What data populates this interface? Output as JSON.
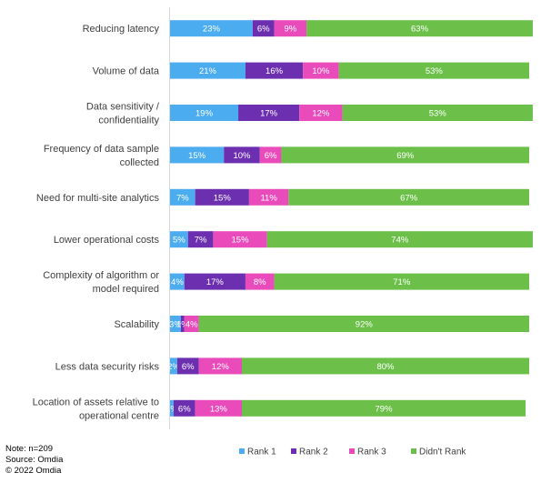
{
  "chart_data": {
    "type": "bar",
    "orientation": "horizontal",
    "stacked": true,
    "categories": [
      "Reducing latency",
      "Volume of data",
      "Data sensitivity / confidentiality",
      "Frequency of data sample collected",
      "Need for multi-site analytics",
      "Lower operational costs",
      "Complexity of algorithm or model required",
      "Scalability",
      "Less data security risks",
      "Location of assets relative to operational centre"
    ],
    "category_lines": [
      [
        "Reducing latency"
      ],
      [
        "Volume of data"
      ],
      [
        "Data sensitivity /",
        "confidentiality"
      ],
      [
        "Frequency of data sample",
        "collected"
      ],
      [
        "Need for multi-site analytics"
      ],
      [
        "Lower operational costs"
      ],
      [
        "Complexity of algorithm or",
        "model required"
      ],
      [
        "Scalability"
      ],
      [
        "Less data security risks"
      ],
      [
        "Location of assets relative to",
        "operational centre"
      ]
    ],
    "series": [
      {
        "name": "Rank 1",
        "color": "#4BACF0",
        "values": [
          23,
          21,
          19,
          15,
          7,
          5,
          4,
          3,
          2,
          1
        ]
      },
      {
        "name": "Rank 2",
        "color": "#6B2FAF",
        "values": [
          6,
          16,
          17,
          10,
          15,
          7,
          17,
          1,
          6,
          6
        ]
      },
      {
        "name": "Rank 3",
        "color": "#E94CBA",
        "values": [
          9,
          10,
          12,
          6,
          11,
          15,
          8,
          4,
          12,
          13
        ]
      },
      {
        "name": "Didn't Rank",
        "color": "#6CC04A",
        "values": [
          63,
          53,
          53,
          69,
          67,
          74,
          71,
          92,
          80,
          79
        ]
      }
    ],
    "data_labels": [
      [
        "23%",
        "6%",
        "9%",
        "63%"
      ],
      [
        "21%",
        "16%",
        "10%",
        "53%"
      ],
      [
        "19%",
        "17%",
        "12%",
        "53%"
      ],
      [
        "15%",
        "10%",
        "6%",
        "69%"
      ],
      [
        "7%",
        "15%",
        "11%",
        "67%"
      ],
      [
        "5%",
        "7%",
        "15%",
        "74%"
      ],
      [
        "4%",
        "17%",
        "8%",
        "71%"
      ],
      [
        "3%",
        "1%",
        "4%",
        "92%"
      ],
      [
        "2%",
        "6%",
        "12%",
        "80%"
      ],
      [
        "1%",
        "6%",
        "13%",
        "79%"
      ]
    ],
    "xlim": [
      0,
      100
    ],
    "grid": false,
    "legend_position": "bottom"
  },
  "notes": {
    "n": "Note: n=209",
    "source": "Source: Omdia",
    "copyright": "© 2022 Omdia"
  }
}
